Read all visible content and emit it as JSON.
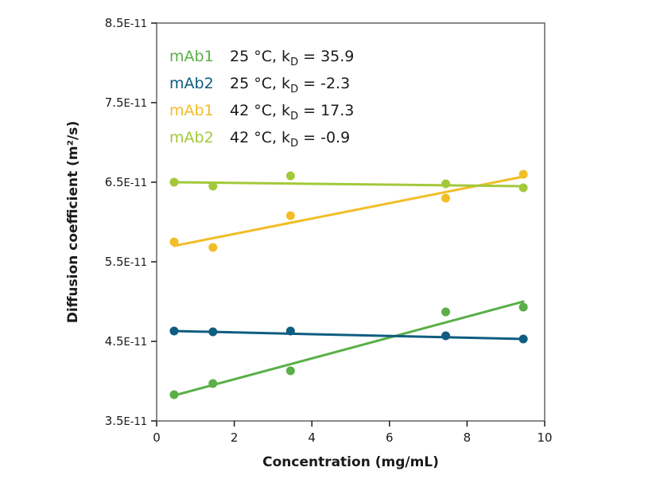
{
  "chart_data": {
    "type": "scatter",
    "title": "",
    "xlabel": "Concentration (mg/mL)",
    "ylabel": "Diffusion coefficient (m²/s)",
    "xlim": [
      0,
      10
    ],
    "ylim": [
      3.5e-11,
      8.5e-11
    ],
    "x_ticks": [
      0,
      2,
      4,
      6,
      8,
      10
    ],
    "x_tick_labels": [
      "0",
      "2",
      "4",
      "6",
      "8",
      "10"
    ],
    "y_ticks": [
      3.5e-11,
      4.5e-11,
      5.5e-11,
      6.5e-11,
      7.5e-11,
      8.5e-11
    ],
    "y_tick_labels": [
      {
        "base": "3.5",
        "exp": "E-11"
      },
      {
        "base": "4.5",
        "exp": "E-11"
      },
      {
        "base": "5.5",
        "exp": "E-11"
      },
      {
        "base": "6.5",
        "exp": "E-11"
      },
      {
        "base": "7.5",
        "exp": "E-11"
      },
      {
        "base": "8.5",
        "exp": "E-11"
      }
    ],
    "grid": false,
    "legend_position": "top-left",
    "series": [
      {
        "name": "mAb1",
        "condition": "25 °C, k",
        "subscript": "D",
        "kd_text": " = 35.9",
        "color": "#5aaf48",
        "x": [
          0.45,
          1.45,
          3.45,
          7.45,
          9.45
        ],
        "y": [
          3.83e-11,
          3.97e-11,
          4.13e-11,
          4.87e-11,
          4.93e-11
        ],
        "fit": [
          [
            0.45,
            3.82e-11
          ],
          [
            9.45,
            5e-11
          ]
        ]
      },
      {
        "name": "mAb2",
        "condition": "25 °C, k",
        "subscript": "D",
        "kd_text": " = -2.3",
        "color": "#0f5d80",
        "x": [
          0.45,
          1.45,
          3.45,
          7.45,
          9.45
        ],
        "y": [
          4.63e-11,
          4.62e-11,
          4.63e-11,
          4.57e-11,
          4.53e-11
        ],
        "fit": [
          [
            0.45,
            4.63e-11
          ],
          [
            9.45,
            4.53e-11
          ]
        ]
      },
      {
        "name": "mAb1",
        "condition": "42 °C, k",
        "subscript": "D",
        "kd_text": " = 17.3",
        "color": "#f2bd26",
        "x": [
          0.45,
          1.45,
          3.45,
          7.45,
          9.45
        ],
        "y": [
          5.75e-11,
          5.68e-11,
          6.08e-11,
          6.3e-11,
          6.6e-11
        ],
        "fit": [
          [
            0.45,
            5.7e-11
          ],
          [
            9.45,
            6.57e-11
          ]
        ]
      },
      {
        "name": "mAb2",
        "condition": "42 °C, k",
        "subscript": "D",
        "kd_text": " = -0.9",
        "color": "#a3c93a",
        "x": [
          0.45,
          1.45,
          3.45,
          7.45,
          9.45
        ],
        "y": [
          6.5e-11,
          6.45e-11,
          6.58e-11,
          6.48e-11,
          6.43e-11
        ],
        "fit": [
          [
            0.45,
            6.5e-11
          ],
          [
            9.45,
            6.45e-11
          ]
        ]
      }
    ]
  }
}
